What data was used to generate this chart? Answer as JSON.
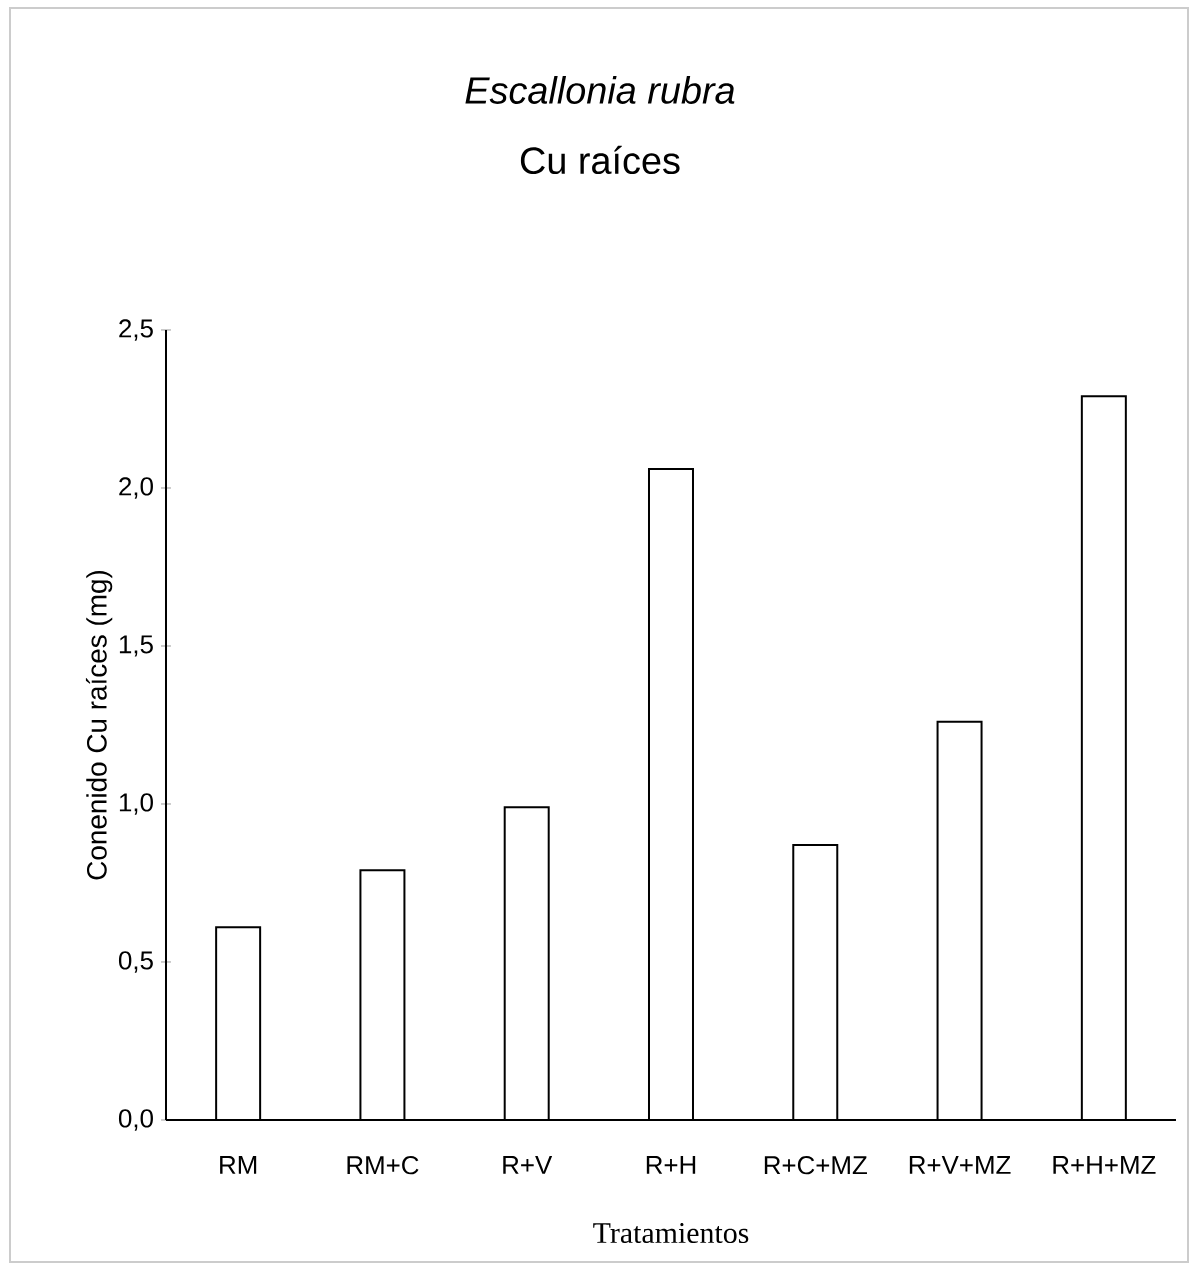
{
  "chart_data": {
    "type": "bar",
    "title": "Escallonia rubra",
    "subtitle": "Cu raíces",
    "xlabel": "Tratamientos",
    "ylabel": "Conenido  Cu raíces (mg)",
    "categories": [
      "RM",
      "RM+C",
      "R+V",
      "R+H",
      "R+C+MZ",
      "R+V+MZ",
      "R+H+MZ"
    ],
    "values": [
      0.61,
      0.79,
      0.99,
      2.06,
      0.87,
      1.26,
      2.29
    ],
    "color": "#ffffff",
    "ylim": [
      0,
      2.5
    ],
    "yticks": [
      {
        "value": 0,
        "label": "0,0"
      },
      {
        "value": 0.5,
        "label": "0,5"
      },
      {
        "value": 1,
        "label": "1,0"
      },
      {
        "value": 1.5,
        "label": "1,5"
      },
      {
        "value": 2,
        "label": "2,0"
      },
      {
        "value": 2.5,
        "label": "2,5"
      }
    ],
    "grid": false
  }
}
